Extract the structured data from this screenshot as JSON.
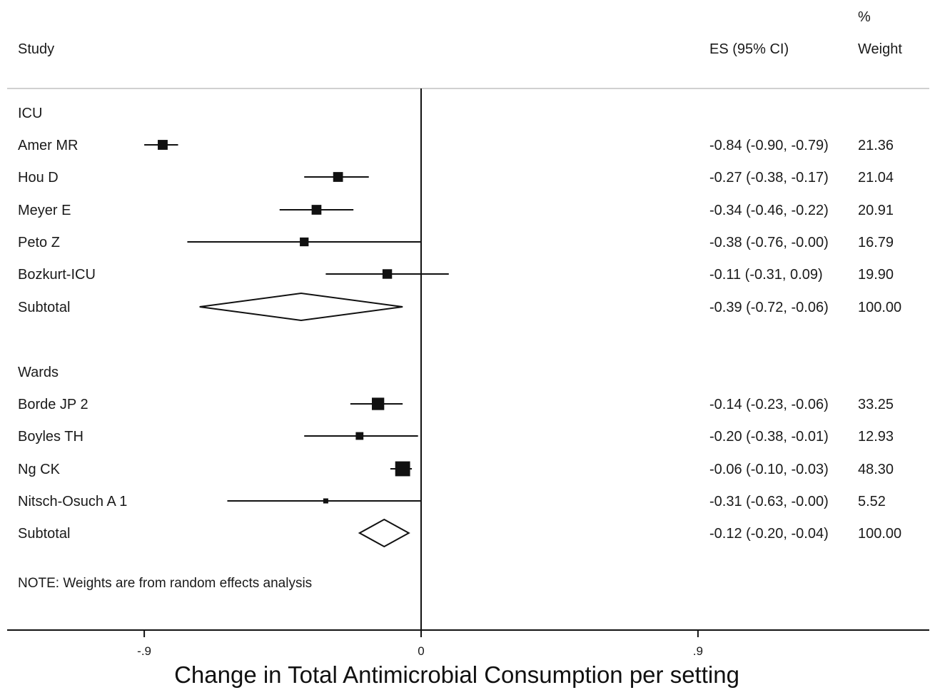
{
  "header": {
    "study": "Study",
    "es": "ES (95% CI)",
    "pct": "%",
    "weight": "Weight"
  },
  "note": "NOTE: Weights are from random effects analysis",
  "chart_data": {
    "type": "forest",
    "xlabel": "Change in Total Antimicrobial Consumption per setting",
    "xlim": [
      -1.3,
      1.5
    ],
    "ticks": [
      {
        "value": -0.9,
        "label": "-.9"
      },
      {
        "value": 0,
        "label": "0"
      },
      {
        "value": 0.9,
        "label": ".9"
      }
    ],
    "groups": [
      {
        "name": "ICU",
        "studies": [
          {
            "name": "Amer MR",
            "es": -0.84,
            "lo": -0.9,
            "hi": -0.79,
            "ci_text": "-0.84 (-0.90, -0.79)",
            "weight": 21.36,
            "weight_text": "21.36"
          },
          {
            "name": "Hou D",
            "es": -0.27,
            "lo": -0.38,
            "hi": -0.17,
            "ci_text": "-0.27 (-0.38, -0.17)",
            "weight": 21.04,
            "weight_text": "21.04"
          },
          {
            "name": "Meyer E",
            "es": -0.34,
            "lo": -0.46,
            "hi": -0.22,
            "ci_text": "-0.34 (-0.46, -0.22)",
            "weight": 20.91,
            "weight_text": "20.91"
          },
          {
            "name": "Peto Z",
            "es": -0.38,
            "lo": -0.76,
            "hi": -0.0,
            "ci_text": "-0.38 (-0.76, -0.00)",
            "weight": 16.79,
            "weight_text": "16.79"
          },
          {
            "name": "Bozkurt-ICU",
            "es": -0.11,
            "lo": -0.31,
            "hi": 0.09,
            "ci_text": "-0.11 (-0.31, 0.09)",
            "weight": 19.9,
            "weight_text": "19.90"
          }
        ],
        "subtotal": {
          "name": "Subtotal",
          "es": -0.39,
          "lo": -0.72,
          "hi": -0.06,
          "ci_text": "-0.39 (-0.72, -0.06)",
          "weight_text": "100.00"
        }
      },
      {
        "name": "Wards",
        "studies": [
          {
            "name": "Borde JP 2",
            "es": -0.14,
            "lo": -0.23,
            "hi": -0.06,
            "ci_text": "-0.14 (-0.23, -0.06)",
            "weight": 33.25,
            "weight_text": "33.25"
          },
          {
            "name": "Boyles TH",
            "es": -0.2,
            "lo": -0.38,
            "hi": -0.01,
            "ci_text": "-0.20 (-0.38, -0.01)",
            "weight": 12.93,
            "weight_text": "12.93"
          },
          {
            "name": "Ng CK",
            "es": -0.06,
            "lo": -0.1,
            "hi": -0.03,
            "ci_text": "-0.06 (-0.10, -0.03)",
            "weight": 48.3,
            "weight_text": "48.30"
          },
          {
            "name": "Nitsch-Osuch A 1",
            "es": -0.31,
            "lo": -0.63,
            "hi": -0.0,
            "ci_text": "-0.31 (-0.63, -0.00)",
            "weight": 5.52,
            "weight_text": "5.52"
          }
        ],
        "subtotal": {
          "name": "Subtotal",
          "es": -0.12,
          "lo": -0.2,
          "hi": -0.04,
          "ci_text": "-0.12 (-0.20, -0.04)",
          "weight_text": "100.00"
        }
      }
    ]
  }
}
